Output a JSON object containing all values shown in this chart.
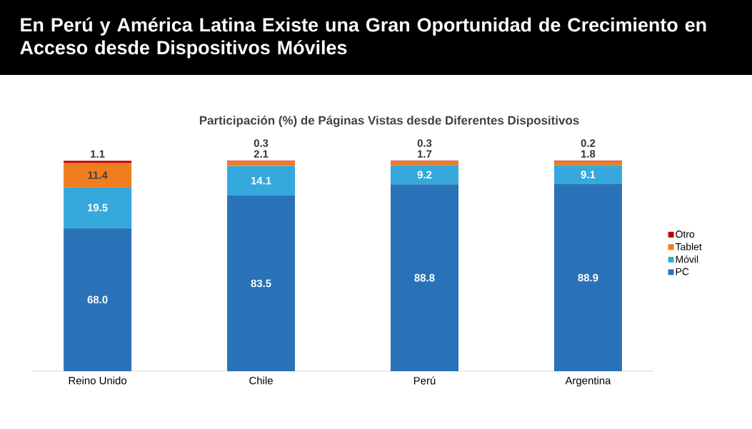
{
  "chart_data": {
    "type": "bar",
    "stacked": true,
    "legend": "right",
    "title": "En Perú y América Latina Existe una Gran Oportunidad de Crecimiento en Acceso desde Dispositivos Móviles",
    "subtitle": "Participación (%) de Páginas Vistas desde Diferentes Dispositivos",
    "categories": [
      "Reino Unido",
      "Chile",
      "Perú",
      "Argentina"
    ],
    "series": [
      {
        "name": "PC",
        "color": "#2a72b8",
        "values": [
          68.0,
          83.5,
          88.8,
          88.9
        ],
        "value_labels": [
          "68.0",
          "83.5",
          "88.8",
          "88.9"
        ]
      },
      {
        "name": "Móvil",
        "color": "#35a9dc",
        "values": [
          19.5,
          14.1,
          9.2,
          9.1
        ],
        "value_labels": [
          "19.5",
          "14.1",
          "9.2",
          "9.1"
        ]
      },
      {
        "name": "Tablet",
        "color": "#f07d1e",
        "values": [
          11.4,
          2.1,
          1.7,
          1.8
        ],
        "value_labels": [
          "11.4",
          "2.1",
          "1.7",
          "1.8"
        ]
      },
      {
        "name": "Otro",
        "color": "#c00000",
        "values": [
          1.1,
          0.3,
          0.3,
          0.2
        ],
        "value_labels": [
          "1.1",
          "0.3",
          "0.3",
          "0.2"
        ]
      }
    ]
  }
}
